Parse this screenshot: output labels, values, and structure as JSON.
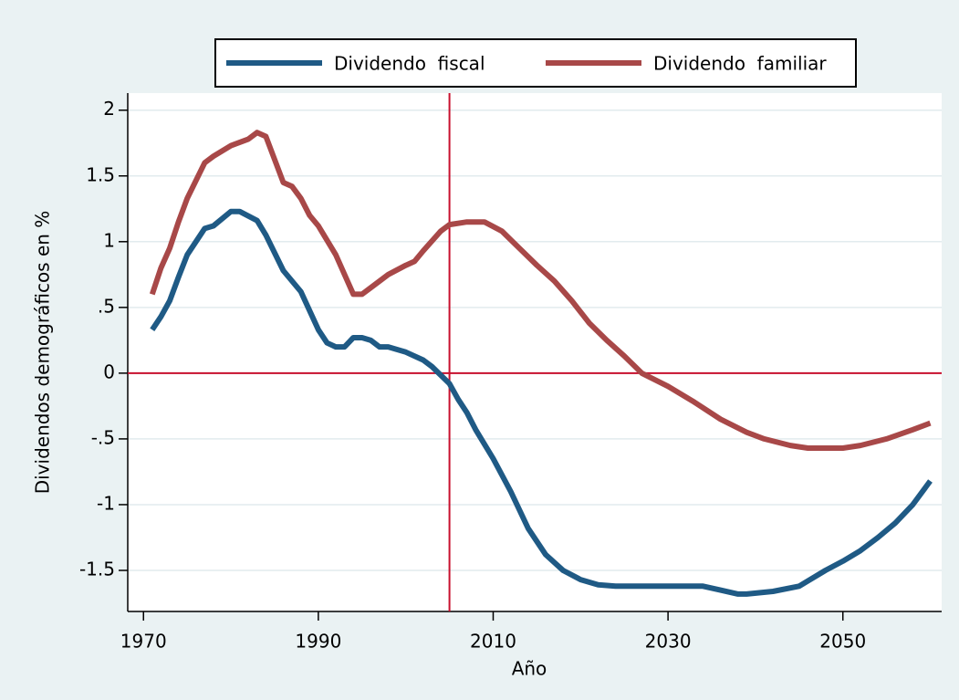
{
  "chart_data": {
    "type": "line",
    "x_label": "Año",
    "y_label": "Dividendos demográficos en %",
    "xlim": [
      1968.2,
      2061.3
    ],
    "ylim": [
      -1.8125,
      2.13
    ],
    "xticks": [
      1970,
      1990,
      2010,
      2030,
      2050
    ],
    "yticks": [
      2,
      1.5,
      1,
      {
        "value": 0.5,
        "label": ".5"
      },
      0,
      {
        "value": -0.5,
        "label": "-.5"
      },
      -1,
      -1.5
    ],
    "grid": true,
    "xline": 2005,
    "yline": 0,
    "refline_color": "#c8102e",
    "legend": "top",
    "series": [
      {
        "name": "Dividendo  fiscal",
        "color": "#1f5a85",
        "x": [
          1971,
          1972,
          1973,
          1974,
          1975,
          1977,
          1978,
          1980,
          1981,
          1983,
          1984,
          1986,
          1988,
          1990,
          1991,
          1992,
          1993,
          1994,
          1995,
          1996,
          1997,
          1998,
          2000,
          2002,
          2003,
          2005,
          2006,
          2007,
          2008,
          2010,
          2012,
          2014,
          2016,
          2018,
          2020,
          2022,
          2024,
          2030,
          2034,
          2036,
          2038,
          2039,
          2042,
          2045,
          2048,
          2050,
          2052,
          2054,
          2056,
          2058,
          2060
        ],
        "values": [
          0.33,
          0.43,
          0.55,
          0.73,
          0.9,
          1.1,
          1.12,
          1.23,
          1.23,
          1.16,
          1.05,
          0.78,
          0.62,
          0.33,
          0.23,
          0.2,
          0.2,
          0.27,
          0.27,
          0.25,
          0.2,
          0.2,
          0.16,
          0.1,
          0.05,
          -0.08,
          -0.2,
          -0.3,
          -0.43,
          -0.65,
          -0.9,
          -1.18,
          -1.38,
          -1.5,
          -1.57,
          -1.61,
          -1.62,
          -1.62,
          -1.62,
          -1.65,
          -1.68,
          -1.68,
          -1.66,
          -1.62,
          -1.5,
          -1.43,
          -1.35,
          -1.25,
          -1.14,
          -1.0,
          -0.82
        ]
      },
      {
        "name": "Dividendo  familiar",
        "color": "#a84848",
        "x": [
          1971,
          1972,
          1973,
          1974,
          1975,
          1977,
          1978,
          1980,
          1982,
          1983,
          1984,
          1986,
          1987,
          1988,
          1989,
          1990,
          1992,
          1993,
          1994,
          1995,
          1996,
          1998,
          2000,
          2001,
          2002,
          2004,
          2005,
          2007,
          2009,
          2011,
          2013,
          2015,
          2017,
          2019,
          2021,
          2023,
          2025,
          2027,
          2030,
          2033,
          2036,
          2039,
          2041,
          2044,
          2046,
          2050,
          2052,
          2055,
          2058,
          2060
        ],
        "values": [
          0.6,
          0.8,
          0.95,
          1.15,
          1.33,
          1.6,
          1.65,
          1.73,
          1.78,
          1.83,
          1.8,
          1.45,
          1.42,
          1.33,
          1.2,
          1.12,
          0.9,
          0.75,
          0.6,
          0.6,
          0.65,
          0.75,
          0.82,
          0.85,
          0.93,
          1.08,
          1.13,
          1.15,
          1.15,
          1.08,
          0.95,
          0.82,
          0.7,
          0.55,
          0.38,
          0.25,
          0.13,
          0.0,
          -0.1,
          -0.22,
          -0.35,
          -0.45,
          -0.5,
          -0.55,
          -0.57,
          -0.57,
          -0.55,
          -0.5,
          -0.43,
          -0.38
        ]
      }
    ]
  }
}
